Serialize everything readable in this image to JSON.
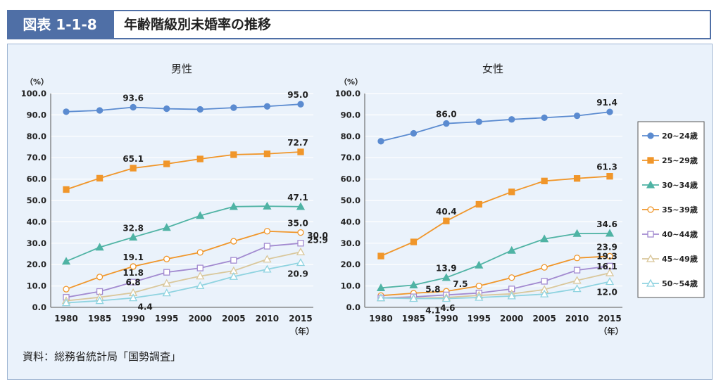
{
  "header": {
    "badge": "図表 1-1-8",
    "title": "年齢階級別未婚率の推移"
  },
  "source": "資料：総務省統計局「国勢調査」",
  "colors": {
    "s20": "#5b8bd0",
    "s25": "#f0962a",
    "s30": "#4fb3a4",
    "s35": "#f0962a",
    "s40": "#a28ad0",
    "s45": "#d9c79b",
    "s50": "#8fd3e0"
  },
  "chart_data": [
    {
      "type": "line",
      "title": "男性",
      "ylabel": "（%）",
      "xlabel": "（年）",
      "x": [
        1980,
        1985,
        1990,
        1995,
        2000,
        2005,
        2010,
        2015
      ],
      "ylim": [
        0,
        100
      ],
      "yticks": [
        "0.0",
        "10.0",
        "20.0",
        "30.0",
        "40.0",
        "50.0",
        "60.0",
        "70.0",
        "80.0",
        "90.0",
        "100.0"
      ],
      "series": [
        {
          "name": "20~24歳",
          "values": [
            91.5,
            92.1,
            93.6,
            92.9,
            92.6,
            93.4,
            94.0,
            95.0
          ],
          "labels": {
            "2": "93.6",
            "7": "95.0"
          }
        },
        {
          "name": "25~29歳",
          "values": [
            55.1,
            60.4,
            65.1,
            67.1,
            69.4,
            71.4,
            71.8,
            72.7
          ],
          "labels": {
            "2": "65.1",
            "7": "72.7"
          }
        },
        {
          "name": "30~34歳",
          "values": [
            21.5,
            28.1,
            32.8,
            37.3,
            42.9,
            47.1,
            47.3,
            47.1
          ],
          "labels": {
            "2": "32.8",
            "7": "47.1"
          }
        },
        {
          "name": "35~39歳",
          "values": [
            8.5,
            14.2,
            19.1,
            22.6,
            25.7,
            30.9,
            35.6,
            35.0
          ],
          "labels": {
            "2": "19.1",
            "7": "35.0"
          }
        },
        {
          "name": "40~44歳",
          "values": [
            4.7,
            7.4,
            11.8,
            16.4,
            18.4,
            22.0,
            28.6,
            30.0
          ],
          "labels": {
            "2": "11.8",
            "7": "30.0"
          }
        },
        {
          "name": "45~49歳",
          "values": [
            3.1,
            4.7,
            6.8,
            11.2,
            14.6,
            17.1,
            22.5,
            25.9
          ],
          "labels": {
            "2": "6.8",
            "7": "25.9"
          }
        },
        {
          "name": "50~54歳",
          "values": [
            2.1,
            3.1,
            4.4,
            6.7,
            10.1,
            14.4,
            17.8,
            20.9
          ],
          "labels": {
            "2": "4.4",
            "7": "20.9"
          }
        }
      ]
    },
    {
      "type": "line",
      "title": "女性",
      "ylabel": "（%）",
      "xlabel": "（年）",
      "x": [
        1980,
        1985,
        1990,
        1995,
        2000,
        2005,
        2010,
        2015
      ],
      "ylim": [
        0,
        100
      ],
      "yticks": [
        "0.0",
        "10.0",
        "20.0",
        "30.0",
        "40.0",
        "50.0",
        "60.0",
        "70.0",
        "80.0",
        "90.0",
        "100.0"
      ],
      "series": [
        {
          "name": "20~24歳",
          "values": [
            77.7,
            81.4,
            86.0,
            86.8,
            87.9,
            88.7,
            89.6,
            91.4
          ],
          "labels": {
            "2": "86.0",
            "7": "91.4"
          }
        },
        {
          "name": "25~29歳",
          "values": [
            24.0,
            30.6,
            40.4,
            48.2,
            54.0,
            59.1,
            60.3,
            61.3
          ],
          "labels": {
            "2": "40.4",
            "7": "61.3"
          }
        },
        {
          "name": "30~34歳",
          "values": [
            9.1,
            10.4,
            13.9,
            19.7,
            26.6,
            32.0,
            34.5,
            34.6
          ],
          "labels": {
            "2": "13.9",
            "7": "34.6"
          }
        },
        {
          "name": "35~39歳",
          "values": [
            5.5,
            6.6,
            7.5,
            10.0,
            13.9,
            18.7,
            23.1,
            23.9
          ],
          "labels": {
            "2": "7.5",
            "7": "23.9"
          }
        },
        {
          "name": "40~44歳",
          "values": [
            4.4,
            4.9,
            5.8,
            6.7,
            8.6,
            12.2,
            17.4,
            19.3
          ],
          "labels": {
            "2": "5.8",
            "7": "19.3"
          }
        },
        {
          "name": "45~49歳",
          "values": [
            4.4,
            4.3,
            4.6,
            5.6,
            6.3,
            8.3,
            12.6,
            16.1
          ],
          "labels": {
            "2": "4.6",
            "7": "16.1"
          }
        },
        {
          "name": "50~54歳",
          "values": [
            4.4,
            4.1,
            4.1,
            4.6,
            5.3,
            6.2,
            8.7,
            12.0
          ],
          "labels": {
            "2": "4.1",
            "7": "12.0"
          }
        }
      ]
    }
  ]
}
